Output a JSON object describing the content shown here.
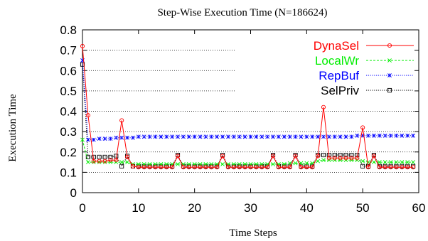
{
  "chart_data": {
    "type": "line",
    "title": "Step-Wise Execution Time (N=186624)",
    "xlabel": "Time Steps",
    "ylabel": "Execution Time",
    "xlim": [
      0,
      60
    ],
    "ylim": [
      0,
      0.8
    ],
    "xticks": [
      0,
      10,
      20,
      30,
      40,
      50,
      60
    ],
    "xtick_labels": [
      "0",
      "10",
      "20",
      "30",
      "40",
      "50",
      "60"
    ],
    "yticks": [
      0,
      0.1,
      0.2,
      0.3,
      0.4,
      0.5,
      0.6,
      0.7,
      0.8
    ],
    "ytick_labels": [
      "0",
      "0.1",
      "0.2",
      "0.3",
      "0.4",
      "0.5",
      "0.6",
      "0.7",
      "0.8"
    ],
    "grid": "horizontal dotted",
    "legend_position": "top-right",
    "x": [
      0,
      1,
      2,
      3,
      4,
      5,
      6,
      7,
      8,
      9,
      10,
      11,
      12,
      13,
      14,
      15,
      16,
      17,
      18,
      19,
      20,
      21,
      22,
      23,
      24,
      25,
      26,
      27,
      28,
      29,
      30,
      31,
      32,
      33,
      34,
      35,
      36,
      37,
      38,
      39,
      40,
      41,
      42,
      43,
      44,
      45,
      46,
      47,
      48,
      49,
      50,
      51,
      52,
      53,
      54,
      55,
      56,
      57,
      58,
      59
    ],
    "series": [
      {
        "name": "DynaSel",
        "color": "#ff0000",
        "marker": "circle",
        "line": "solid",
        "values": [
          0.72,
          0.38,
          0.155,
          0.155,
          0.155,
          0.16,
          0.16,
          0.355,
          0.175,
          0.13,
          0.125,
          0.125,
          0.125,
          0.125,
          0.125,
          0.125,
          0.125,
          0.18,
          0.125,
          0.125,
          0.125,
          0.125,
          0.125,
          0.125,
          0.125,
          0.18,
          0.125,
          0.125,
          0.125,
          0.125,
          0.125,
          0.125,
          0.125,
          0.125,
          0.18,
          0.125,
          0.125,
          0.125,
          0.18,
          0.125,
          0.125,
          0.125,
          0.18,
          0.42,
          0.17,
          0.17,
          0.17,
          0.17,
          0.17,
          0.17,
          0.32,
          0.125,
          0.18,
          0.125,
          0.125,
          0.125,
          0.125,
          0.125,
          0.125,
          0.125
        ]
      },
      {
        "name": "LocalWr",
        "color": "#00ee00",
        "marker": "x",
        "line": "dashed",
        "values": [
          0.26,
          0.15,
          0.15,
          0.15,
          0.15,
          0.15,
          0.15,
          0.15,
          0.15,
          0.14,
          0.14,
          0.14,
          0.14,
          0.14,
          0.14,
          0.14,
          0.14,
          0.14,
          0.14,
          0.14,
          0.14,
          0.14,
          0.14,
          0.14,
          0.14,
          0.14,
          0.14,
          0.14,
          0.14,
          0.14,
          0.14,
          0.14,
          0.14,
          0.14,
          0.14,
          0.14,
          0.14,
          0.145,
          0.145,
          0.145,
          0.145,
          0.145,
          0.155,
          0.16,
          0.16,
          0.16,
          0.16,
          0.16,
          0.16,
          0.16,
          0.155,
          0.15,
          0.15,
          0.15,
          0.15,
          0.15,
          0.15,
          0.15,
          0.15,
          0.15
        ]
      },
      {
        "name": "RepBuf",
        "color": "#0000ff",
        "marker": "star",
        "line": "dotted",
        "values": [
          0.65,
          0.26,
          0.26,
          0.265,
          0.265,
          0.265,
          0.27,
          0.27,
          0.27,
          0.27,
          0.275,
          0.275,
          0.275,
          0.275,
          0.275,
          0.275,
          0.275,
          0.275,
          0.275,
          0.275,
          0.275,
          0.275,
          0.275,
          0.275,
          0.275,
          0.275,
          0.275,
          0.275,
          0.275,
          0.275,
          0.275,
          0.275,
          0.275,
          0.275,
          0.275,
          0.275,
          0.275,
          0.275,
          0.275,
          0.275,
          0.275,
          0.275,
          0.275,
          0.275,
          0.275,
          0.275,
          0.275,
          0.275,
          0.275,
          0.28,
          0.28,
          0.28,
          0.28,
          0.28,
          0.28,
          0.28,
          0.28,
          0.28,
          0.28,
          0.28
        ]
      },
      {
        "name": "SelPriv",
        "color": "#000000",
        "marker": "square",
        "line": "dotted",
        "values": [
          0.63,
          0.175,
          0.175,
          0.175,
          0.175,
          0.175,
          0.18,
          0.13,
          0.18,
          0.13,
          0.13,
          0.13,
          0.13,
          0.13,
          0.13,
          0.13,
          0.13,
          0.185,
          0.13,
          0.13,
          0.13,
          0.13,
          0.13,
          0.13,
          0.13,
          0.185,
          0.13,
          0.13,
          0.13,
          0.13,
          0.13,
          0.13,
          0.13,
          0.13,
          0.185,
          0.13,
          0.13,
          0.13,
          0.185,
          0.13,
          0.13,
          0.13,
          0.185,
          0.185,
          0.185,
          0.185,
          0.185,
          0.185,
          0.185,
          0.185,
          0.13,
          0.13,
          0.185,
          0.13,
          0.13,
          0.13,
          0.13,
          0.13,
          0.13,
          0.13
        ]
      }
    ]
  }
}
